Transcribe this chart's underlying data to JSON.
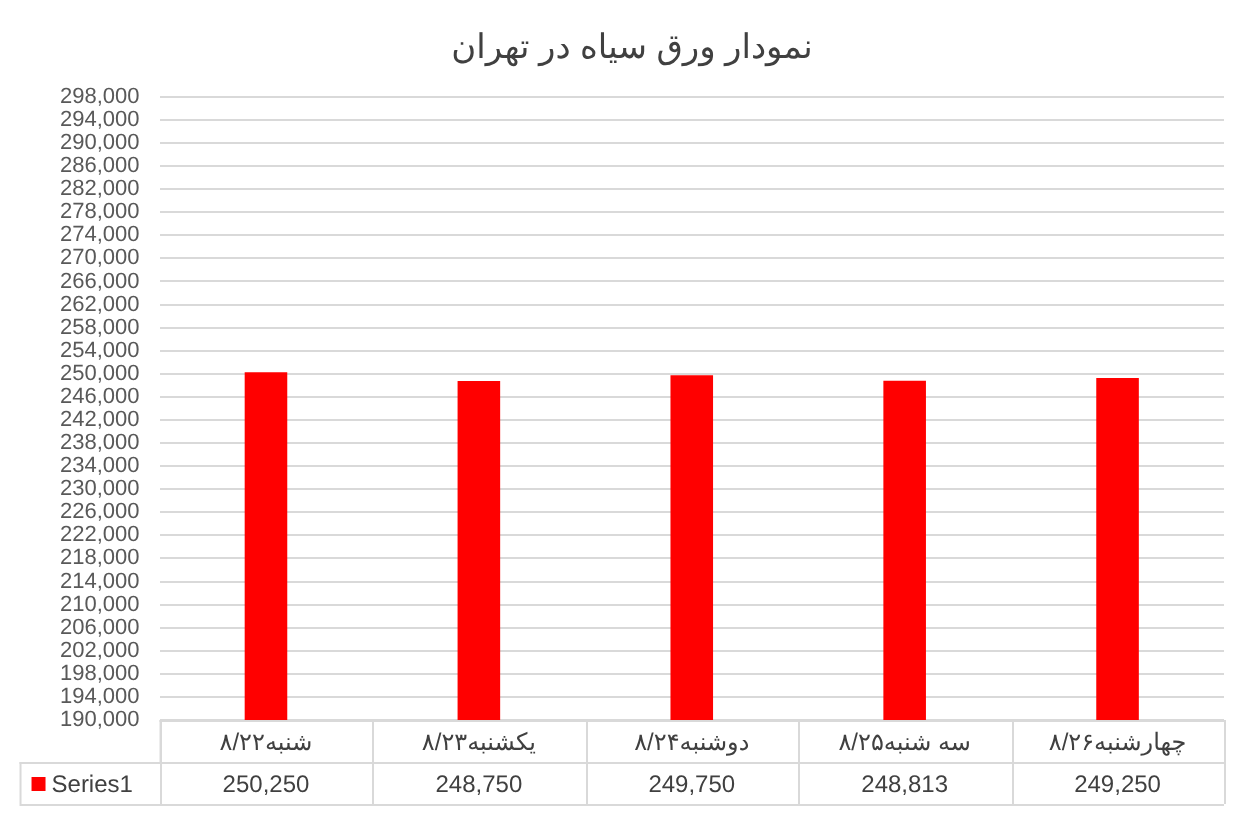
{
  "chart_data": {
    "type": "bar",
    "title": "نمودار ورق سیاه در تهران",
    "categories": [
      "شنبه۸/۲۲",
      "یکشنبه۸/۲۳",
      "دوشنبه۸/۲۴",
      "سه شنبه۸/۲۵",
      "چهارشنبه۸/۲۶"
    ],
    "series": [
      {
        "name": "Series1",
        "color": "#ff0000",
        "values": [
          250250,
          248750,
          249750,
          248813,
          249250
        ],
        "value_labels": [
          "250,250",
          "248,750",
          "249,750",
          "248,813",
          "249,250"
        ]
      }
    ],
    "ylim": [
      190000,
      298000
    ],
    "yticks": [
      {
        "value": 190000,
        "label": "190,000"
      },
      {
        "value": 194000,
        "label": "194,000"
      },
      {
        "value": 198000,
        "label": "198,000"
      },
      {
        "value": 202000,
        "label": "202,000"
      },
      {
        "value": 206000,
        "label": "206,000"
      },
      {
        "value": 210000,
        "label": "210,000"
      },
      {
        "value": 214000,
        "label": "214,000"
      },
      {
        "value": 218000,
        "label": "218,000"
      },
      {
        "value": 222000,
        "label": "222,000"
      },
      {
        "value": 226000,
        "label": "226,000"
      },
      {
        "value": 230000,
        "label": "230,000"
      },
      {
        "value": 234000,
        "label": "234,000"
      },
      {
        "value": 238000,
        "label": "238,000"
      },
      {
        "value": 242000,
        "label": "242,000"
      },
      {
        "value": 246000,
        "label": "246,000"
      },
      {
        "value": 250000,
        "label": "250,000"
      },
      {
        "value": 254000,
        "label": "254,000"
      },
      {
        "value": 258000,
        "label": "258,000"
      },
      {
        "value": 262000,
        "label": "262,000"
      },
      {
        "value": 266000,
        "label": "266,000"
      },
      {
        "value": 270000,
        "label": "270,000"
      },
      {
        "value": 274000,
        "label": "274,000"
      },
      {
        "value": 278000,
        "label": "278,000"
      },
      {
        "value": 282000,
        "label": "282,000"
      },
      {
        "value": 286000,
        "label": "286,000"
      },
      {
        "value": 290000,
        "label": "290,000"
      },
      {
        "value": 294000,
        "label": "294,000"
      },
      {
        "value": 298000,
        "label": "298,000"
      }
    ],
    "grid": "y",
    "legend": "bottom"
  }
}
